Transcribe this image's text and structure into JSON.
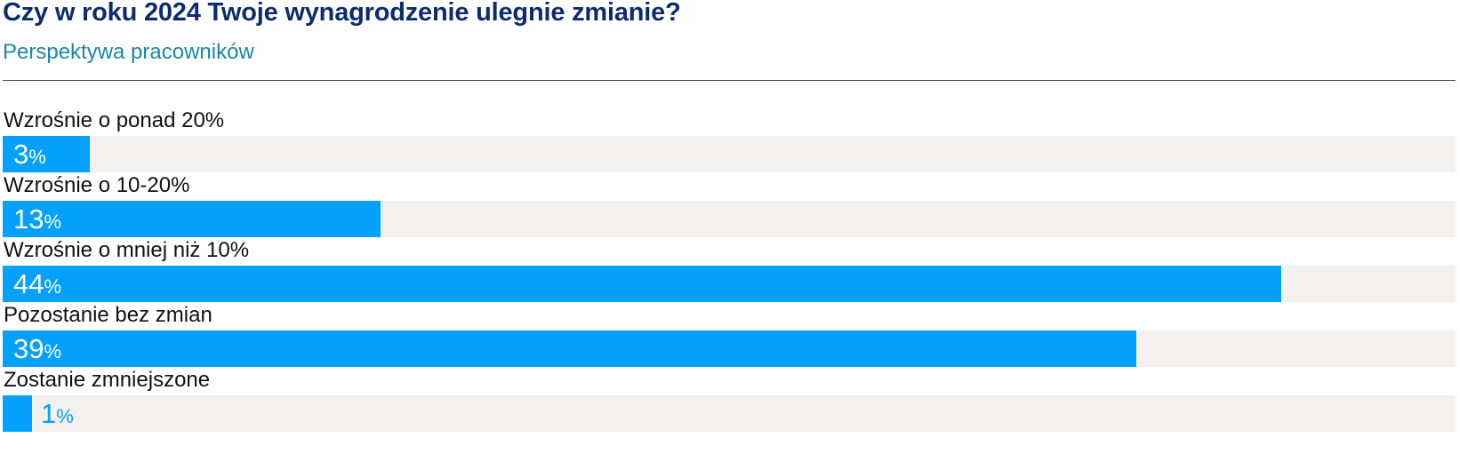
{
  "header": {
    "title": "Czy w roku 2024 Twoje wynagrodzenie ulegnie zmianie?",
    "subtitle": "Perspektywa pracowników"
  },
  "colors": {
    "bar": "#03a0fc",
    "track": "#f3f0ed",
    "title": "#0d2c6e",
    "subtitle": "#1b87a8"
  },
  "chart_data": {
    "type": "bar",
    "orientation": "horizontal",
    "title": "Czy w roku 2024 Twoje wynagrodzenie ulegnie zmianie?",
    "subtitle": "Perspektywa pracowników",
    "categories": [
      "Wzrośnie o ponad 20%",
      "Wzrośnie o 10-20%",
      "Wzrośnie o mniej niż 10%",
      "Pozostanie bez zmian",
      "Zostanie zmniejszone"
    ],
    "values": [
      3,
      13,
      44,
      39,
      1
    ],
    "unit": "%",
    "xlim": [
      0,
      50
    ],
    "grid": false,
    "legend": false
  }
}
